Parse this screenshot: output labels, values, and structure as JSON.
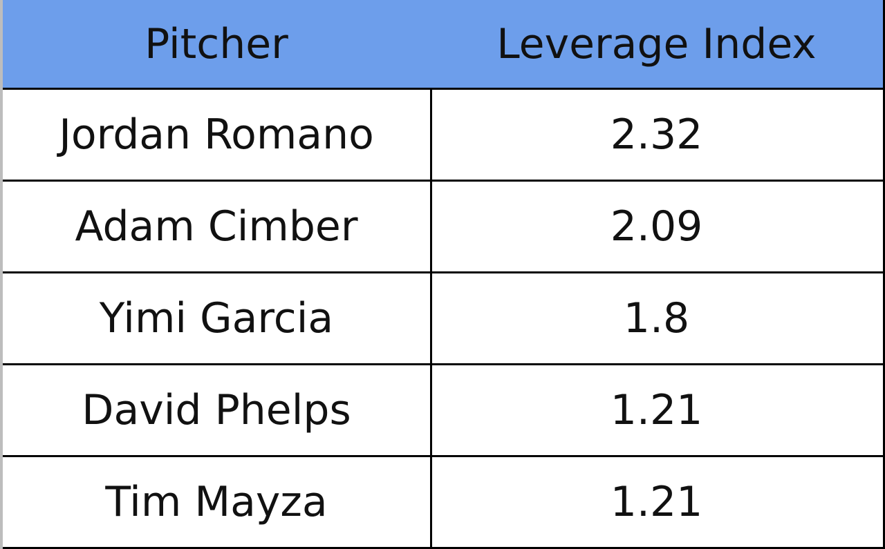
{
  "table": {
    "header": [
      "Pitcher",
      "Leverage Index"
    ],
    "rows": [
      [
        "Jordan Romano",
        2.32
      ],
      [
        "Adam Cimber",
        2.09
      ],
      [
        "Yimi Garcia",
        1.8
      ],
      [
        "David Phelps",
        1.21
      ],
      [
        "Tim Mayza",
        1.21
      ]
    ]
  }
}
